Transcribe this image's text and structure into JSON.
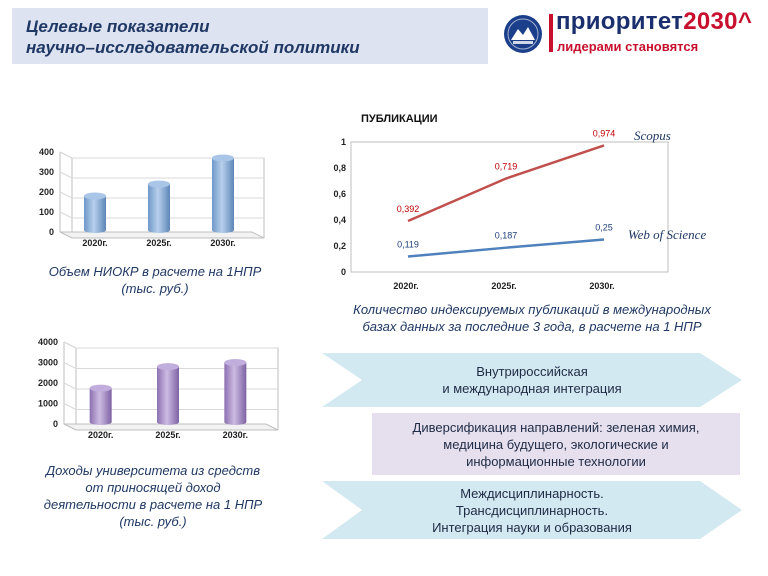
{
  "header": {
    "title_line1": "Целевые показатели",
    "title_line2": "научно–исследовательской политики"
  },
  "logo": {
    "word_main": "приоритет",
    "word_year": "2030^",
    "slogan": "лидерами становятся"
  },
  "colors": {
    "title_bg": "#dde3f1",
    "blue_bar": "#8fb4dd",
    "purple_bar": "#a98fc9",
    "scopus_line": "#c0504d",
    "wos_line": "#4f81bd",
    "banner_blue": "#d3e9f1",
    "banner_purple": "#e6e0ee",
    "brand_red": "#c8102e",
    "brand_blue": "#1b2f6e"
  },
  "chart_data": [
    {
      "type": "bar",
      "title": "",
      "categories": [
        "2020г.",
        "2025г.",
        "2030г."
      ],
      "values": [
        180,
        240,
        370
      ],
      "ylim": [
        0,
        400
      ],
      "yticks": [
        "0",
        "100",
        "200",
        "300",
        "400"
      ],
      "caption": "Объем НИОКР в расчете на 1НПР (тыс. руб.)",
      "caption_lines": [
        "Объем НИОКР в расчете на 1НПР",
        "(тыс. руб.)"
      ]
    },
    {
      "type": "line",
      "title": "ПУБЛИКАЦИИ",
      "categories": [
        "2020г.",
        "2025г.",
        "2030г."
      ],
      "ylim": [
        0,
        1
      ],
      "yticks": [
        "0",
        "0,2",
        "0,4",
        "0,6",
        "0,8",
        "1"
      ],
      "series": [
        {
          "name": "Scopus",
          "values": [
            0.392,
            0.719,
            0.974
          ],
          "labels": [
            "0,392",
            "0,719",
            "0,974"
          ]
        },
        {
          "name": "Web of Science",
          "values": [
            0.119,
            0.187,
            0.25
          ],
          "labels": [
            "0,119",
            "0,187",
            "0,25"
          ]
        }
      ],
      "caption": "Количество индексируемых публикаций в международных базах данных за последние 3 года, в расчете на 1 НПР",
      "caption_lines": [
        "Количество индексируемых публикаций в международных",
        "базах данных за последние 3 года, в расчете на 1 НПР"
      ]
    },
    {
      "type": "bar",
      "title": "",
      "categories": [
        "2020г.",
        "2025г.",
        "2030г."
      ],
      "values": [
        1750,
        2800,
        3000
      ],
      "ylim": [
        0,
        4000
      ],
      "yticks": [
        "0",
        "1000",
        "2000",
        "3000",
        "4000"
      ],
      "caption": "Доходы университета из средств от приносящей доход деятельности в расчете на 1 НПР (тыс. руб.)",
      "caption_lines": [
        "Доходы университета из средств",
        "от приносящей доход",
        "деятельности в расчете на 1 НПР",
        "(тыс. руб.)"
      ]
    }
  ],
  "banners": [
    {
      "lines": [
        "Внутрироссийская",
        "и международная интеграция"
      ]
    },
    {
      "lines": [
        "Диверсификация  направлений:  зеленая химия,",
        "медицина будущего, экологические  и",
        "информационные  технологии"
      ]
    },
    {
      "lines": [
        "Междисциплинарность.",
        "Трансдисциплинарность.",
        "Интеграция  науки и образования"
      ]
    }
  ]
}
